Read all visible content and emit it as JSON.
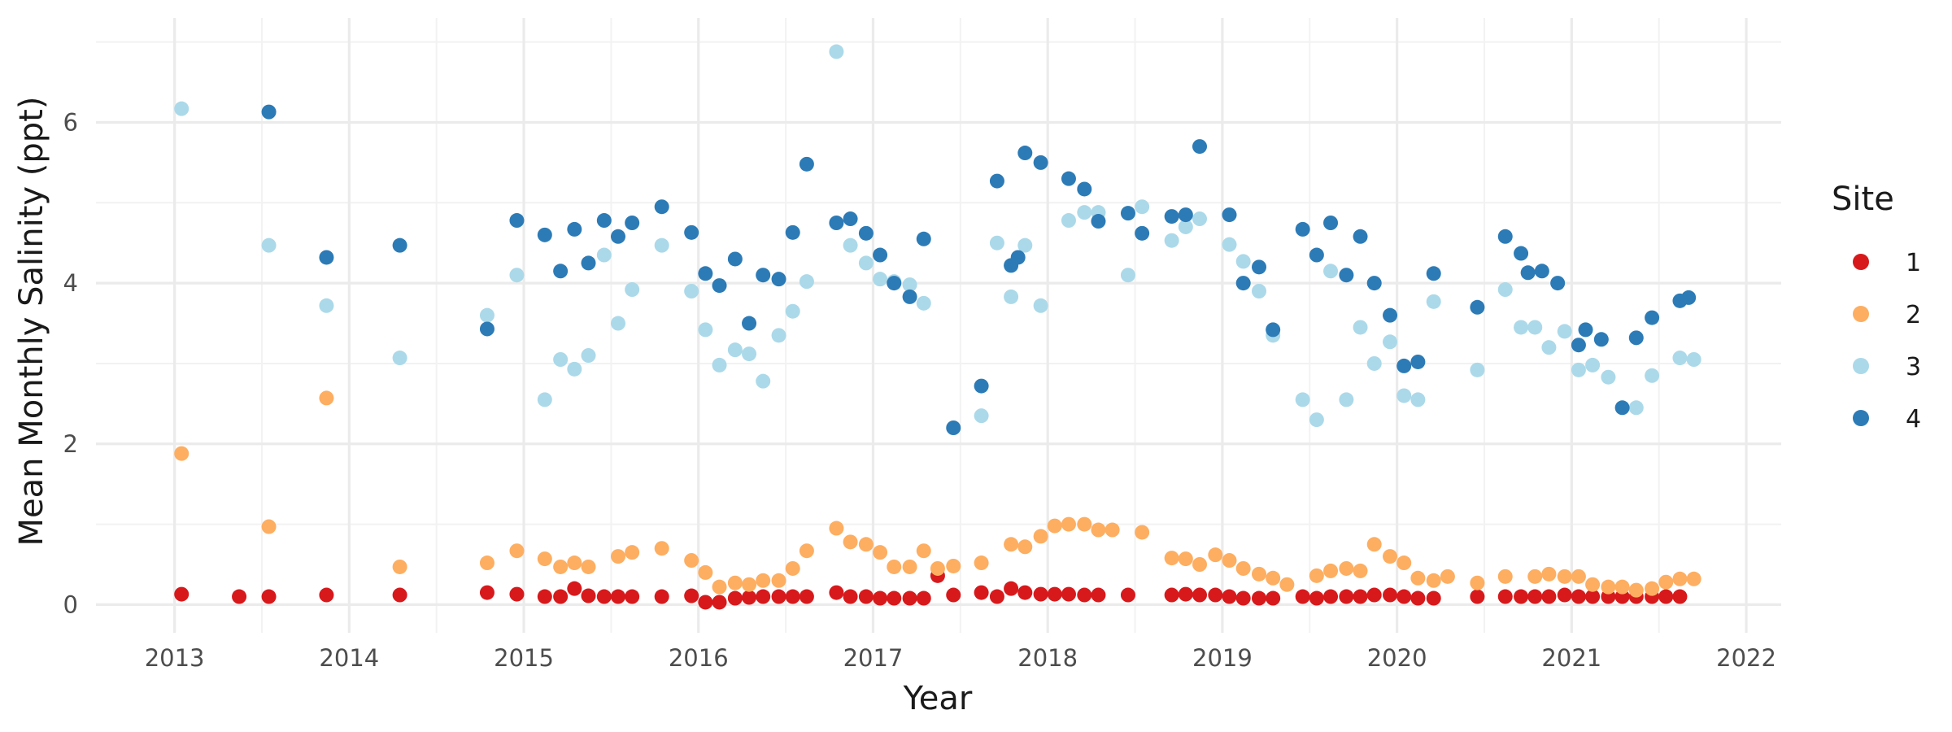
{
  "chart_data": {
    "type": "scatter",
    "title": "",
    "xlabel": "Year",
    "ylabel": "Mean Monthly Salinity (ppt)",
    "xlim": [
      2012.55,
      2022.2
    ],
    "ylim": [
      -0.35,
      7.3
    ],
    "x_ticks": [
      2013,
      2014,
      2015,
      2016,
      2017,
      2018,
      2019,
      2020,
      2021,
      2022
    ],
    "y_ticks": [
      0,
      2,
      4,
      6
    ],
    "grid": true,
    "legend_title": "Site",
    "legend_position": "right",
    "series": [
      {
        "name": "1",
        "color": "#d7191c",
        "points": [
          [
            2013.04,
            0.13
          ],
          [
            2013.37,
            0.1
          ],
          [
            2013.54,
            0.1
          ],
          [
            2013.87,
            0.12
          ],
          [
            2014.29,
            0.12
          ],
          [
            2014.79,
            0.15
          ],
          [
            2014.96,
            0.13
          ],
          [
            2015.12,
            0.1
          ],
          [
            2015.21,
            0.1
          ],
          [
            2015.29,
            0.2
          ],
          [
            2015.37,
            0.11
          ],
          [
            2015.46,
            0.1
          ],
          [
            2015.54,
            0.1
          ],
          [
            2015.62,
            0.1
          ],
          [
            2015.79,
            0.1
          ],
          [
            2015.96,
            0.11
          ],
          [
            2016.04,
            0.03
          ],
          [
            2016.12,
            0.03
          ],
          [
            2016.21,
            0.08
          ],
          [
            2016.29,
            0.09
          ],
          [
            2016.37,
            0.1
          ],
          [
            2016.46,
            0.1
          ],
          [
            2016.54,
            0.1
          ],
          [
            2016.62,
            0.1
          ],
          [
            2016.79,
            0.15
          ],
          [
            2016.87,
            0.1
          ],
          [
            2016.96,
            0.1
          ],
          [
            2017.04,
            0.08
          ],
          [
            2017.12,
            0.08
          ],
          [
            2017.21,
            0.08
          ],
          [
            2017.29,
            0.08
          ],
          [
            2017.37,
            0.36
          ],
          [
            2017.46,
            0.12
          ],
          [
            2017.62,
            0.15
          ],
          [
            2017.71,
            0.1
          ],
          [
            2017.79,
            0.2
          ],
          [
            2017.87,
            0.15
          ],
          [
            2017.96,
            0.13
          ],
          [
            2018.04,
            0.13
          ],
          [
            2018.12,
            0.13
          ],
          [
            2018.21,
            0.12
          ],
          [
            2018.29,
            0.12
          ],
          [
            2018.46,
            0.12
          ],
          [
            2018.71,
            0.12
          ],
          [
            2018.79,
            0.13
          ],
          [
            2018.87,
            0.12
          ],
          [
            2018.96,
            0.12
          ],
          [
            2019.04,
            0.1
          ],
          [
            2019.12,
            0.08
          ],
          [
            2019.21,
            0.08
          ],
          [
            2019.29,
            0.08
          ],
          [
            2019.46,
            0.1
          ],
          [
            2019.54,
            0.08
          ],
          [
            2019.62,
            0.1
          ],
          [
            2019.71,
            0.1
          ],
          [
            2019.79,
            0.1
          ],
          [
            2019.87,
            0.12
          ],
          [
            2019.96,
            0.12
          ],
          [
            2020.04,
            0.1
          ],
          [
            2020.12,
            0.08
          ],
          [
            2020.21,
            0.08
          ],
          [
            2020.46,
            0.1
          ],
          [
            2020.62,
            0.1
          ],
          [
            2020.71,
            0.1
          ],
          [
            2020.79,
            0.1
          ],
          [
            2020.87,
            0.1
          ],
          [
            2020.96,
            0.12
          ],
          [
            2021.04,
            0.1
          ],
          [
            2021.12,
            0.1
          ],
          [
            2021.21,
            0.1
          ],
          [
            2021.29,
            0.1
          ],
          [
            2021.37,
            0.1
          ],
          [
            2021.46,
            0.1
          ],
          [
            2021.54,
            0.1
          ],
          [
            2021.62,
            0.1
          ]
        ]
      },
      {
        "name": "2",
        "color": "#fdae61",
        "points": [
          [
            2013.04,
            1.88
          ],
          [
            2013.54,
            0.97
          ],
          [
            2013.87,
            2.57
          ],
          [
            2014.29,
            0.47
          ],
          [
            2014.79,
            0.52
          ],
          [
            2014.96,
            0.67
          ],
          [
            2015.12,
            0.57
          ],
          [
            2015.21,
            0.47
          ],
          [
            2015.29,
            0.52
          ],
          [
            2015.37,
            0.47
          ],
          [
            2015.54,
            0.6
          ],
          [
            2015.62,
            0.65
          ],
          [
            2015.79,
            0.7
          ],
          [
            2015.96,
            0.55
          ],
          [
            2016.04,
            0.4
          ],
          [
            2016.12,
            0.22
          ],
          [
            2016.21,
            0.27
          ],
          [
            2016.29,
            0.25
          ],
          [
            2016.37,
            0.3
          ],
          [
            2016.46,
            0.3
          ],
          [
            2016.54,
            0.45
          ],
          [
            2016.62,
            0.67
          ],
          [
            2016.79,
            0.95
          ],
          [
            2016.87,
            0.78
          ],
          [
            2016.96,
            0.75
          ],
          [
            2017.04,
            0.65
          ],
          [
            2017.12,
            0.47
          ],
          [
            2017.21,
            0.47
          ],
          [
            2017.29,
            0.67
          ],
          [
            2017.37,
            0.45
          ],
          [
            2017.46,
            0.48
          ],
          [
            2017.62,
            0.52
          ],
          [
            2017.79,
            0.75
          ],
          [
            2017.87,
            0.72
          ],
          [
            2017.96,
            0.85
          ],
          [
            2018.04,
            0.98
          ],
          [
            2018.12,
            1.0
          ],
          [
            2018.21,
            1.0
          ],
          [
            2018.29,
            0.93
          ],
          [
            2018.37,
            0.93
          ],
          [
            2018.54,
            0.9
          ],
          [
            2018.71,
            0.58
          ],
          [
            2018.79,
            0.57
          ],
          [
            2018.87,
            0.5
          ],
          [
            2018.96,
            0.62
          ],
          [
            2019.04,
            0.55
          ],
          [
            2019.12,
            0.45
          ],
          [
            2019.21,
            0.38
          ],
          [
            2019.29,
            0.33
          ],
          [
            2019.37,
            0.25
          ],
          [
            2019.54,
            0.36
          ],
          [
            2019.62,
            0.42
          ],
          [
            2019.71,
            0.45
          ],
          [
            2019.79,
            0.42
          ],
          [
            2019.87,
            0.75
          ],
          [
            2019.96,
            0.6
          ],
          [
            2020.04,
            0.52
          ],
          [
            2020.12,
            0.33
          ],
          [
            2020.21,
            0.3
          ],
          [
            2020.29,
            0.35
          ],
          [
            2020.46,
            0.27
          ],
          [
            2020.62,
            0.35
          ],
          [
            2020.79,
            0.35
          ],
          [
            2020.87,
            0.38
          ],
          [
            2020.96,
            0.35
          ],
          [
            2021.04,
            0.35
          ],
          [
            2021.12,
            0.25
          ],
          [
            2021.21,
            0.22
          ],
          [
            2021.29,
            0.22
          ],
          [
            2021.37,
            0.18
          ],
          [
            2021.46,
            0.2
          ],
          [
            2021.54,
            0.28
          ],
          [
            2021.62,
            0.32
          ],
          [
            2021.7,
            0.32
          ]
        ]
      },
      {
        "name": "3",
        "color": "#abd9e9",
        "points": [
          [
            2013.04,
            6.17
          ],
          [
            2013.54,
            4.47
          ],
          [
            2013.87,
            3.72
          ],
          [
            2014.29,
            3.07
          ],
          [
            2014.79,
            3.6
          ],
          [
            2014.96,
            4.1
          ],
          [
            2015.12,
            2.55
          ],
          [
            2015.21,
            3.05
          ],
          [
            2015.29,
            2.93
          ],
          [
            2015.37,
            3.1
          ],
          [
            2015.46,
            4.35
          ],
          [
            2015.54,
            3.5
          ],
          [
            2015.62,
            3.92
          ],
          [
            2015.79,
            4.47
          ],
          [
            2015.96,
            3.9
          ],
          [
            2016.04,
            3.42
          ],
          [
            2016.12,
            2.98
          ],
          [
            2016.21,
            3.17
          ],
          [
            2016.29,
            3.12
          ],
          [
            2016.37,
            2.78
          ],
          [
            2016.46,
            3.35
          ],
          [
            2016.54,
            3.65
          ],
          [
            2016.62,
            4.02
          ],
          [
            2016.79,
            6.88
          ],
          [
            2016.87,
            4.47
          ],
          [
            2016.96,
            4.25
          ],
          [
            2017.04,
            4.05
          ],
          [
            2017.12,
            4.02
          ],
          [
            2017.21,
            3.98
          ],
          [
            2017.29,
            3.75
          ],
          [
            2017.62,
            2.35
          ],
          [
            2017.71,
            4.5
          ],
          [
            2017.79,
            3.83
          ],
          [
            2017.87,
            4.47
          ],
          [
            2017.96,
            3.72
          ],
          [
            2018.12,
            4.78
          ],
          [
            2018.21,
            4.88
          ],
          [
            2018.29,
            4.88
          ],
          [
            2018.46,
            4.1
          ],
          [
            2018.54,
            4.95
          ],
          [
            2018.71,
            4.53
          ],
          [
            2018.79,
            4.7
          ],
          [
            2018.87,
            4.8
          ],
          [
            2019.04,
            4.48
          ],
          [
            2019.12,
            4.27
          ],
          [
            2019.21,
            3.9
          ],
          [
            2019.29,
            3.35
          ],
          [
            2019.46,
            2.55
          ],
          [
            2019.54,
            2.3
          ],
          [
            2019.62,
            4.15
          ],
          [
            2019.71,
            2.55
          ],
          [
            2019.79,
            3.45
          ],
          [
            2019.87,
            3.0
          ],
          [
            2019.96,
            3.27
          ],
          [
            2020.04,
            2.6
          ],
          [
            2020.12,
            2.55
          ],
          [
            2020.21,
            3.77
          ],
          [
            2020.46,
            2.92
          ],
          [
            2020.62,
            3.92
          ],
          [
            2020.71,
            3.45
          ],
          [
            2020.79,
            3.45
          ],
          [
            2020.87,
            3.2
          ],
          [
            2020.96,
            3.4
          ],
          [
            2021.04,
            2.92
          ],
          [
            2021.12,
            2.98
          ],
          [
            2021.21,
            2.83
          ],
          [
            2021.37,
            2.45
          ],
          [
            2021.46,
            2.85
          ],
          [
            2021.62,
            3.07
          ],
          [
            2021.7,
            3.05
          ]
        ]
      },
      {
        "name": "4",
        "color": "#2c7bb6",
        "points": [
          [
            2013.54,
            6.13
          ],
          [
            2013.87,
            4.32
          ],
          [
            2014.29,
            4.47
          ],
          [
            2014.79,
            3.43
          ],
          [
            2014.96,
            4.78
          ],
          [
            2015.12,
            4.6
          ],
          [
            2015.21,
            4.15
          ],
          [
            2015.29,
            4.67
          ],
          [
            2015.37,
            4.25
          ],
          [
            2015.46,
            4.78
          ],
          [
            2015.54,
            4.58
          ],
          [
            2015.62,
            4.75
          ],
          [
            2015.79,
            4.95
          ],
          [
            2015.96,
            4.63
          ],
          [
            2016.04,
            4.12
          ],
          [
            2016.12,
            3.97
          ],
          [
            2016.21,
            4.3
          ],
          [
            2016.29,
            3.5
          ],
          [
            2016.37,
            4.1
          ],
          [
            2016.46,
            4.05
          ],
          [
            2016.54,
            4.63
          ],
          [
            2016.62,
            5.48
          ],
          [
            2016.79,
            4.75
          ],
          [
            2016.87,
            4.8
          ],
          [
            2016.96,
            4.62
          ],
          [
            2017.04,
            4.35
          ],
          [
            2017.12,
            4.0
          ],
          [
            2017.21,
            3.83
          ],
          [
            2017.29,
            4.55
          ],
          [
            2017.46,
            2.2
          ],
          [
            2017.62,
            2.72
          ],
          [
            2017.71,
            5.27
          ],
          [
            2017.79,
            4.22
          ],
          [
            2017.83,
            4.32
          ],
          [
            2017.87,
            5.62
          ],
          [
            2017.96,
            5.5
          ],
          [
            2018.12,
            5.3
          ],
          [
            2018.21,
            5.17
          ],
          [
            2018.29,
            4.77
          ],
          [
            2018.46,
            4.87
          ],
          [
            2018.54,
            4.62
          ],
          [
            2018.71,
            4.83
          ],
          [
            2018.79,
            4.85
          ],
          [
            2018.87,
            5.7
          ],
          [
            2019.04,
            4.85
          ],
          [
            2019.12,
            4.0
          ],
          [
            2019.21,
            4.2
          ],
          [
            2019.29,
            3.42
          ],
          [
            2019.46,
            4.67
          ],
          [
            2019.54,
            4.35
          ],
          [
            2019.62,
            4.75
          ],
          [
            2019.71,
            4.1
          ],
          [
            2019.79,
            4.58
          ],
          [
            2019.87,
            4.0
          ],
          [
            2019.96,
            3.6
          ],
          [
            2020.04,
            2.97
          ],
          [
            2020.12,
            3.02
          ],
          [
            2020.21,
            4.12
          ],
          [
            2020.46,
            3.7
          ],
          [
            2020.62,
            4.58
          ],
          [
            2020.71,
            4.37
          ],
          [
            2020.75,
            4.13
          ],
          [
            2020.83,
            4.15
          ],
          [
            2020.92,
            4.0
          ],
          [
            2021.04,
            3.23
          ],
          [
            2021.08,
            3.42
          ],
          [
            2021.17,
            3.3
          ],
          [
            2021.29,
            2.45
          ],
          [
            2021.37,
            3.32
          ],
          [
            2021.46,
            3.57
          ],
          [
            2021.62,
            3.78
          ],
          [
            2021.67,
            3.82
          ]
        ]
      }
    ]
  }
}
